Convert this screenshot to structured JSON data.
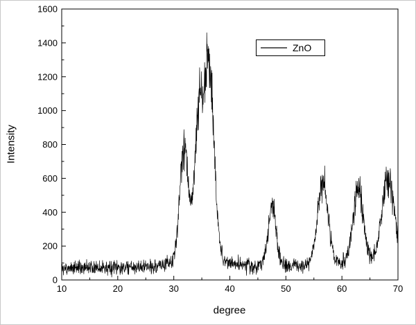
{
  "figure": {
    "background": "#ffffff",
    "frame_color": "#000000"
  },
  "chart_data": {
    "type": "line",
    "title": "",
    "xlabel": "degree",
    "ylabel": "Intensity",
    "xlim": [
      10,
      70
    ],
    "ylim": [
      0,
      1600
    ],
    "x_ticks": [
      10,
      20,
      30,
      40,
      50,
      60,
      70
    ],
    "y_ticks": [
      0,
      200,
      400,
      600,
      800,
      1000,
      1200,
      1400,
      1600
    ],
    "grid": false,
    "legend": {
      "position": "top-center",
      "entries": [
        {
          "label": "ZnO",
          "line_color": "#000000"
        }
      ]
    },
    "series": [
      {
        "name": "ZnO",
        "color": "#000000",
        "baseline": 70,
        "lorentz_fraction": 0.2,
        "noise_base": 16,
        "noise_scale": 0.055,
        "points": 1400,
        "peaks": [
          {
            "center": 31.8,
            "amplitude": 700,
            "sigma": 0.75
          },
          {
            "center": 34.45,
            "amplitude": 820,
            "sigma": 0.78
          },
          {
            "center": 36.3,
            "amplitude": 1150,
            "sigma": 0.88
          },
          {
            "center": 47.55,
            "amplitude": 360,
            "sigma": 0.7
          },
          {
            "center": 56.6,
            "amplitude": 500,
            "sigma": 0.95
          },
          {
            "center": 62.9,
            "amplitude": 450,
            "sigma": 0.95
          },
          {
            "center": 67.95,
            "amplitude": 440,
            "sigma": 1.0
          },
          {
            "center": 69.1,
            "amplitude": 190,
            "sigma": 0.8
          }
        ]
      }
    ]
  }
}
